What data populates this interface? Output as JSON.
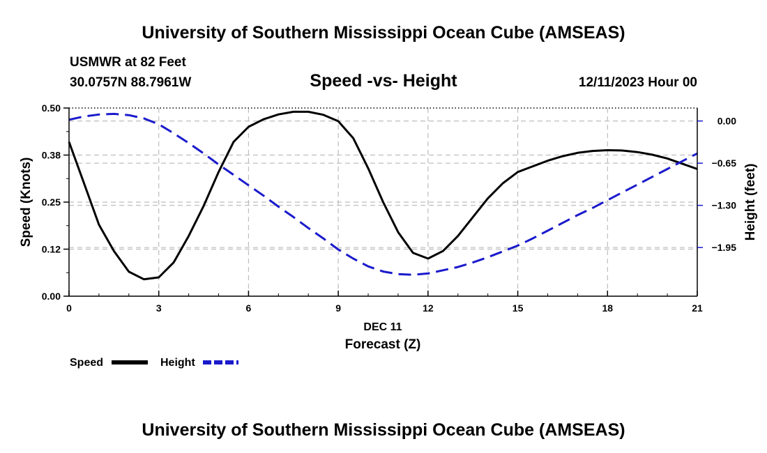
{
  "header": {
    "title": "University of Southern Mississippi Ocean Cube (AMSEAS)",
    "station": "USMWR at 82 Feet",
    "coords": "30.0757N  88.7961W",
    "chart_title": "Speed -vs- Height",
    "datetime": "12/11/2023 Hour 00",
    "footer_title": "University of Southern Mississippi Ocean Cube (AMSEAS)"
  },
  "chart_data": {
    "type": "line",
    "title": "Speed -vs- Height",
    "xlabel": "Forecast (Z)",
    "xdate_label": "DEC 11",
    "ylabel_left": "Speed (Knots)",
    "ylabel_right": "Height (feet)",
    "xlim": [
      0,
      21
    ],
    "ylim_left": [
      0,
      0.5
    ],
    "ylim_right": [
      -2.7,
      0.2
    ],
    "x_ticks": [
      0,
      3,
      6,
      9,
      12,
      15,
      18,
      21
    ],
    "x_tick_labels": [
      "0",
      "3",
      "6",
      "9",
      "12",
      "15",
      "18",
      "21"
    ],
    "y_left_ticks": [
      0,
      0.125,
      0.25,
      0.375,
      0.5
    ],
    "y_left_tick_labels": [
      "0.00",
      "0.12",
      "0.25",
      "0.38",
      "0.50"
    ],
    "y_right_ticks": [
      0.0,
      -0.65,
      -1.3,
      -1.95
    ],
    "y_right_tick_labels": [
      "0.00",
      "−0.65",
      "−1.30",
      "−1.95"
    ],
    "grid": true,
    "legend": "bottom-left",
    "series": [
      {
        "name": "Speed",
        "axis": "left",
        "color": "#000000",
        "style": "solid",
        "x": [
          0,
          0.5,
          1,
          1.5,
          2,
          2.5,
          3,
          3.5,
          4,
          4.5,
          5,
          5.5,
          6,
          6.5,
          7,
          7.5,
          8,
          8.5,
          9,
          9.5,
          10,
          10.5,
          11,
          11.5,
          12,
          12.5,
          13,
          13.5,
          14,
          14.5,
          15,
          15.5,
          16,
          16.5,
          17,
          17.5,
          18,
          18.5,
          19,
          19.5,
          20,
          20.5,
          21
        ],
        "values": [
          0.41,
          0.3,
          0.19,
          0.12,
          0.065,
          0.045,
          0.05,
          0.09,
          0.16,
          0.24,
          0.33,
          0.41,
          0.45,
          0.47,
          0.483,
          0.49,
          0.49,
          0.482,
          0.465,
          0.42,
          0.34,
          0.25,
          0.17,
          0.115,
          0.1,
          0.12,
          0.16,
          0.21,
          0.26,
          0.3,
          0.33,
          0.345,
          0.36,
          0.372,
          0.381,
          0.386,
          0.388,
          0.387,
          0.383,
          0.376,
          0.366,
          0.352,
          0.338
        ]
      },
      {
        "name": "Height",
        "axis": "right",
        "color": "#1a1acc",
        "style": "dashed",
        "x": [
          0,
          0.5,
          1,
          1.5,
          2,
          2.5,
          3,
          3.5,
          4,
          4.5,
          5,
          5.5,
          6,
          6.5,
          7,
          7.5,
          8,
          8.5,
          9,
          9.5,
          10,
          10.5,
          11,
          11.5,
          12,
          12.5,
          13,
          13.5,
          14,
          14.5,
          15,
          15.5,
          16,
          16.5,
          17,
          17.5,
          18,
          18.5,
          19,
          19.5,
          20,
          20.5,
          21
        ],
        "values": [
          0.02,
          0.07,
          0.1,
          0.11,
          0.09,
          0.04,
          -0.05,
          -0.19,
          -0.34,
          -0.5,
          -0.67,
          -0.83,
          -0.99,
          -1.15,
          -1.32,
          -1.48,
          -1.65,
          -1.81,
          -1.98,
          -2.12,
          -2.24,
          -2.32,
          -2.36,
          -2.37,
          -2.35,
          -2.3,
          -2.25,
          -2.18,
          -2.1,
          -2.01,
          -1.92,
          -1.81,
          -1.69,
          -1.57,
          -1.45,
          -1.34,
          -1.22,
          -1.1,
          -0.98,
          -0.86,
          -0.74,
          -0.62,
          -0.5
        ]
      }
    ]
  }
}
